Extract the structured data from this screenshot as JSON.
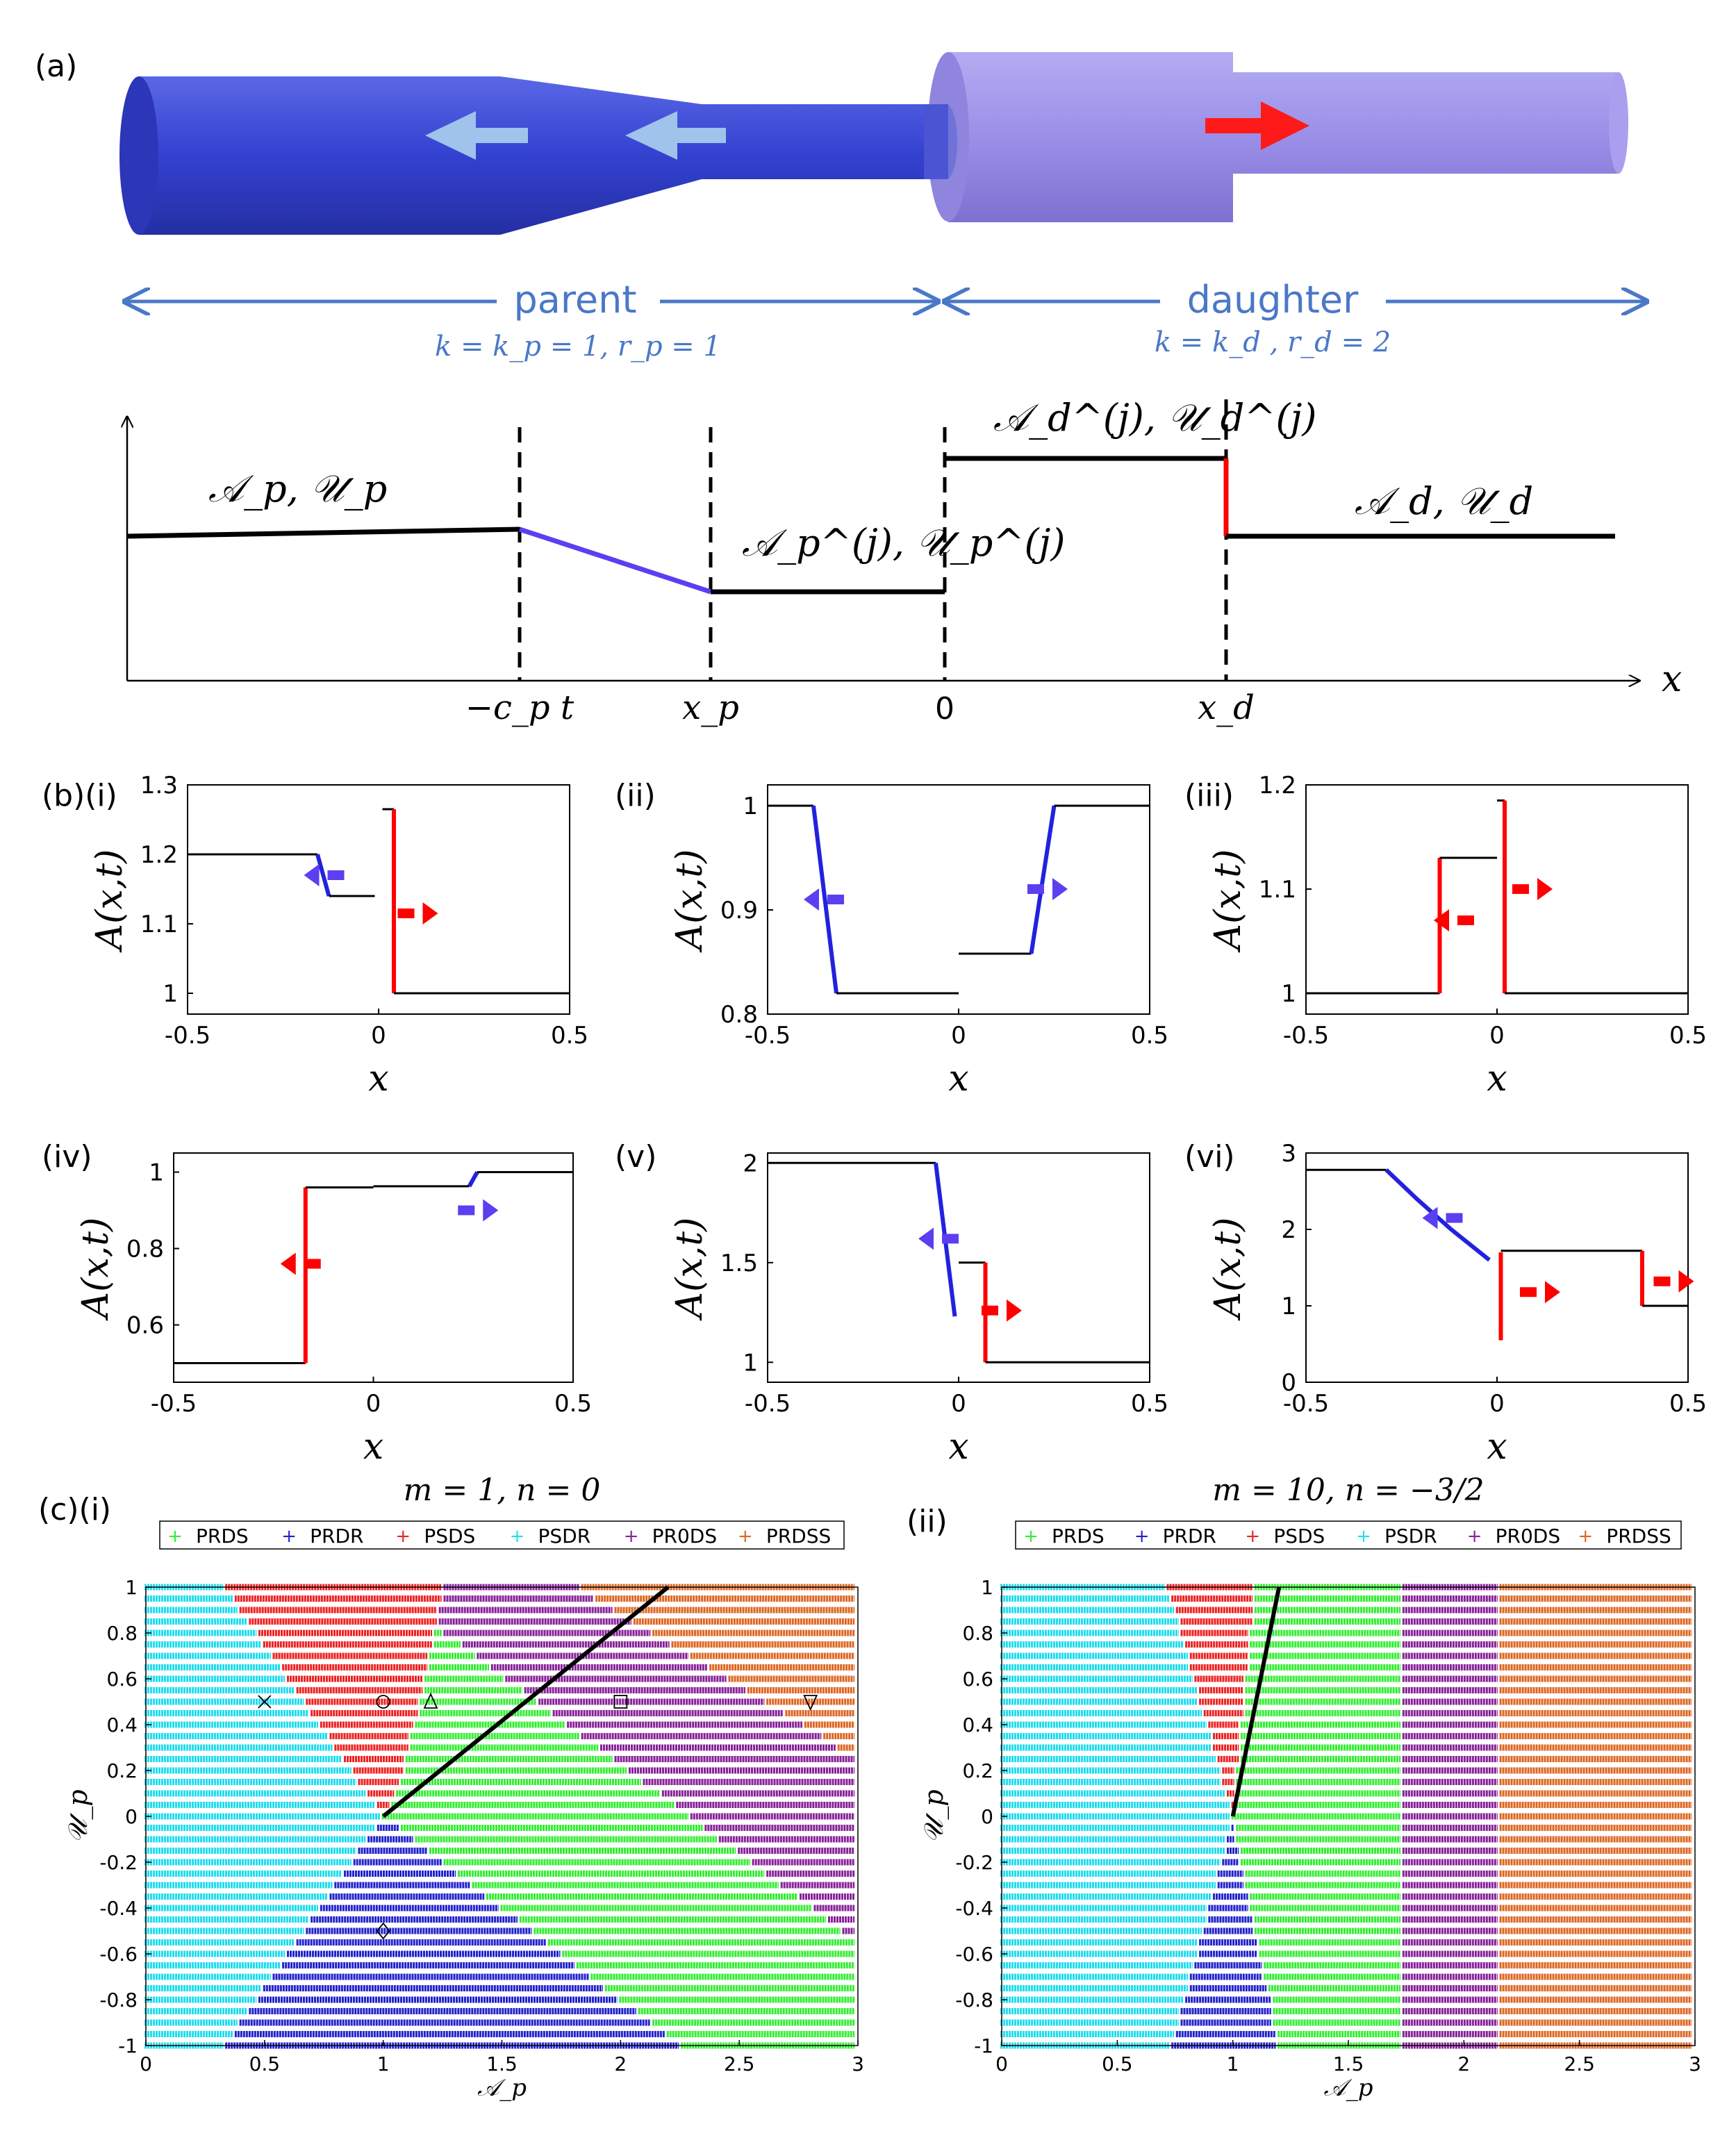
{
  "panel_a": {
    "label": "(a)",
    "parent_label": "parent",
    "parent_params": "k = k_p = 1, r_p = 1",
    "daughter_label": "daughter",
    "daughter_params": "k = k_d , r_d = 2",
    "region_labels": {
      "parent": "𝒜_p, 𝒰_p",
      "parent_j": "𝒜_p^(j), 𝒰_p^(j)",
      "daughter_j": "𝒜_d^(j), 𝒰_d^(j)",
      "daughter": "𝒜_d, 𝒰_d"
    },
    "x_markers": [
      "−c_p t",
      "x_p",
      "0",
      "x_d"
    ],
    "x_axis_label": "x",
    "colors": {
      "parent_tube": "#3f4fd6",
      "daughter_tube": "#9a8fe8",
      "arrow_light": "#9fc3ea",
      "arrow_red": "#ff1a1a",
      "rarefaction": "#5b3ff0",
      "shock": "#ff0000"
    }
  },
  "panel_b_labels": [
    "(b)(i)",
    "(ii)",
    "(iii)",
    "(iv)",
    "(v)",
    "(vi)"
  ],
  "panel_c_labels": [
    "(c)(i)",
    "(ii)"
  ],
  "chart_data": [
    {
      "id": "b-i",
      "type": "line",
      "xlabel": "x",
      "ylabel": "A(x,t)",
      "xlim": [
        -0.5,
        0.5
      ],
      "ylim": [
        0.97,
        1.3
      ],
      "xticks": [
        "-0.5",
        "0",
        "0.5"
      ],
      "yticks": [
        "1",
        "1.1",
        "1.2",
        "1.3"
      ],
      "series": [
        {
          "name": "parent-left",
          "color": "#000000",
          "points": [
            [
              -0.5,
              1.2
            ],
            [
              -0.16,
              1.2
            ]
          ]
        },
        {
          "name": "parent-rarefaction",
          "color": "#2222dd",
          "points": [
            [
              -0.16,
              1.2
            ],
            [
              -0.13,
              1.14
            ]
          ]
        },
        {
          "name": "parent-mid",
          "color": "#000000",
          "points": [
            [
              -0.13,
              1.14
            ],
            [
              -0.01,
              1.14
            ]
          ]
        },
        {
          "name": "daughter-top",
          "color": "#000000",
          "points": [
            [
              0.01,
              1.265
            ],
            [
              0.04,
              1.265
            ]
          ]
        },
        {
          "name": "daughter-shock",
          "color": "#ff0000",
          "points": [
            [
              0.04,
              1.265
            ],
            [
              0.04,
              1.0
            ]
          ]
        },
        {
          "name": "daughter-right",
          "color": "#000000",
          "points": [
            [
              0.04,
              1.0
            ],
            [
              0.5,
              1.0
            ]
          ]
        }
      ],
      "arrows": [
        {
          "x": -0.13,
          "y": 1.17,
          "dir": "left",
          "color": "#5b3ff0"
        },
        {
          "x": 0.09,
          "y": 1.115,
          "dir": "right",
          "color": "#ff0000"
        }
      ]
    },
    {
      "id": "b-ii",
      "type": "line",
      "xlabel": "x",
      "ylabel": "A(x,t)",
      "xlim": [
        -0.5,
        0.5
      ],
      "ylim": [
        0.8,
        1.02
      ],
      "xticks": [
        "-0.5",
        "0",
        "0.5"
      ],
      "yticks": [
        "0.8",
        "0.9",
        "1"
      ],
      "series": [
        {
          "name": "parent-left",
          "color": "#000000",
          "points": [
            [
              -0.5,
              1.0
            ],
            [
              -0.38,
              1.0
            ]
          ]
        },
        {
          "name": "parent-rarefaction",
          "color": "#2222dd",
          "points": [
            [
              -0.38,
              1.0
            ],
            [
              -0.32,
              0.82
            ]
          ]
        },
        {
          "name": "parent-mid",
          "color": "#000000",
          "points": [
            [
              -0.32,
              0.82
            ],
            [
              0.0,
              0.82
            ]
          ]
        },
        {
          "name": "daughter-mid",
          "color": "#000000",
          "points": [
            [
              0.0,
              0.858
            ],
            [
              0.19,
              0.858
            ]
          ]
        },
        {
          "name": "daughter-rarefaction",
          "color": "#2222dd",
          "points": [
            [
              0.19,
              0.858
            ],
            [
              0.25,
              1.0
            ]
          ]
        },
        {
          "name": "daughter-right",
          "color": "#000000",
          "points": [
            [
              0.25,
              1.0
            ],
            [
              0.5,
              1.0
            ]
          ]
        }
      ],
      "arrows": [
        {
          "x": -0.34,
          "y": 0.91,
          "dir": "left",
          "color": "#5b3ff0"
        },
        {
          "x": 0.22,
          "y": 0.92,
          "dir": "right",
          "color": "#5b3ff0"
        }
      ]
    },
    {
      "id": "b-iii",
      "type": "line",
      "xlabel": "x",
      "ylabel": "A(x,t)",
      "xlim": [
        -0.5,
        0.5
      ],
      "ylim": [
        0.98,
        1.2
      ],
      "xticks": [
        "-0.5",
        "0",
        "0.5"
      ],
      "yticks": [
        "1",
        "1.1",
        "1.2"
      ],
      "series": [
        {
          "name": "parent-left",
          "color": "#000000",
          "points": [
            [
              -0.5,
              1.0
            ],
            [
              -0.15,
              1.0
            ]
          ]
        },
        {
          "name": "parent-shock",
          "color": "#ff0000",
          "points": [
            [
              -0.15,
              1.0
            ],
            [
              -0.15,
              1.13
            ]
          ]
        },
        {
          "name": "parent-mid",
          "color": "#000000",
          "points": [
            [
              -0.15,
              1.13
            ],
            [
              0.0,
              1.13
            ]
          ]
        },
        {
          "name": "daughter-top",
          "color": "#000000",
          "points": [
            [
              0.0,
              1.185
            ],
            [
              0.02,
              1.185
            ]
          ]
        },
        {
          "name": "daughter-shock",
          "color": "#ff0000",
          "points": [
            [
              0.02,
              1.185
            ],
            [
              0.02,
              1.0
            ]
          ]
        },
        {
          "name": "daughter-right",
          "color": "#000000",
          "points": [
            [
              0.02,
              1.0
            ],
            [
              0.5,
              1.0
            ]
          ]
        }
      ],
      "arrows": [
        {
          "x": -0.1,
          "y": 1.07,
          "dir": "left",
          "color": "#ff0000"
        },
        {
          "x": 0.08,
          "y": 1.1,
          "dir": "right",
          "color": "#ff0000"
        }
      ]
    },
    {
      "id": "b-iv",
      "type": "line",
      "xlabel": "x",
      "ylabel": "A(x,t)",
      "xlim": [
        -0.5,
        0.5
      ],
      "ylim": [
        0.45,
        1.05
      ],
      "xticks": [
        "-0.5",
        "0",
        "0.5"
      ],
      "yticks": [
        "0.6",
        "0.8",
        "1"
      ],
      "series": [
        {
          "name": "parent-left",
          "color": "#000000",
          "points": [
            [
              -0.5,
              0.5
            ],
            [
              -0.17,
              0.5
            ]
          ]
        },
        {
          "name": "parent-shock",
          "color": "#ff0000",
          "points": [
            [
              -0.17,
              0.5
            ],
            [
              -0.17,
              0.96
            ]
          ]
        },
        {
          "name": "parent-mid",
          "color": "#000000",
          "points": [
            [
              -0.17,
              0.96
            ],
            [
              0.0,
              0.96
            ]
          ]
        },
        {
          "name": "daughter-mid",
          "color": "#000000",
          "points": [
            [
              0.0,
              0.963
            ],
            [
              0.24,
              0.963
            ]
          ]
        },
        {
          "name": "daughter-rarefaction",
          "color": "#2222dd",
          "points": [
            [
              0.24,
              0.963
            ],
            [
              0.26,
              1.0
            ]
          ]
        },
        {
          "name": "daughter-right",
          "color": "#000000",
          "points": [
            [
              0.26,
              1.0
            ],
            [
              0.5,
              1.0
            ]
          ]
        }
      ],
      "arrows": [
        {
          "x": -0.17,
          "y": 0.76,
          "dir": "left",
          "color": "#ff0000"
        },
        {
          "x": 0.25,
          "y": 0.9,
          "dir": "right",
          "color": "#5b3ff0"
        }
      ]
    },
    {
      "id": "b-v",
      "type": "line",
      "xlabel": "x",
      "ylabel": "A(x,t)",
      "xlim": [
        -0.5,
        0.5
      ],
      "ylim": [
        0.9,
        2.05
      ],
      "xticks": [
        "-0.5",
        "0",
        "0.5"
      ],
      "yticks": [
        "1",
        "1.5",
        "2"
      ],
      "series": [
        {
          "name": "parent-left",
          "color": "#000000",
          "points": [
            [
              -0.5,
              2.0
            ],
            [
              -0.06,
              2.0
            ]
          ]
        },
        {
          "name": "parent-rarefaction",
          "color": "#2222dd",
          "points": [
            [
              -0.06,
              2.0
            ],
            [
              -0.01,
              1.23
            ]
          ]
        },
        {
          "name": "daughter-top",
          "color": "#000000",
          "points": [
            [
              0.0,
              1.5
            ],
            [
              0.07,
              1.5
            ]
          ]
        },
        {
          "name": "daughter-shock",
          "color": "#ff0000",
          "points": [
            [
              0.07,
              1.5
            ],
            [
              0.07,
              1.0
            ]
          ]
        },
        {
          "name": "daughter-right",
          "color": "#000000",
          "points": [
            [
              0.07,
              1.0
            ],
            [
              0.5,
              1.0
            ]
          ]
        }
      ],
      "arrows": [
        {
          "x": -0.04,
          "y": 1.62,
          "dir": "left",
          "color": "#5b3ff0"
        },
        {
          "x": 0.1,
          "y": 1.26,
          "dir": "right",
          "color": "#ff0000"
        }
      ]
    },
    {
      "id": "b-vi",
      "type": "line",
      "xlabel": "x",
      "ylabel": "A(x,t)",
      "xlim": [
        -0.5,
        0.5
      ],
      "ylim": [
        0,
        3
      ],
      "xticks": [
        "-0.5",
        "0",
        "0.5"
      ],
      "yticks": [
        "0",
        "1",
        "2",
        "3"
      ],
      "series": [
        {
          "name": "parent-left",
          "color": "#000000",
          "points": [
            [
              -0.5,
              2.78
            ],
            [
              -0.29,
              2.78
            ]
          ]
        },
        {
          "name": "parent-rarefaction",
          "color": "#2222dd",
          "points": [
            [
              -0.29,
              2.78
            ],
            [
              -0.21,
              2.4
            ],
            [
              -0.12,
              2.0
            ],
            [
              -0.02,
              1.6
            ]
          ]
        },
        {
          "name": "parent-shock-stub",
          "color": "#ff0000",
          "points": [
            [
              0.01,
              0.55
            ],
            [
              0.01,
              1.7
            ]
          ]
        },
        {
          "name": "mid",
          "color": "#000000",
          "points": [
            [
              0.01,
              1.72
            ],
            [
              0.38,
              1.72
            ]
          ]
        },
        {
          "name": "daughter-shock",
          "color": "#ff0000",
          "points": [
            [
              0.38,
              1.72
            ],
            [
              0.38,
              1.0
            ]
          ]
        },
        {
          "name": "daughter-right",
          "color": "#000000",
          "points": [
            [
              0.38,
              1.0
            ],
            [
              0.5,
              1.0
            ]
          ]
        }
      ],
      "arrows": [
        {
          "x": -0.13,
          "y": 2.15,
          "dir": "left",
          "color": "#5b3ff0"
        },
        {
          "x": 0.1,
          "y": 1.18,
          "dir": "right",
          "color": "#ff0000"
        },
        {
          "x": 0.45,
          "y": 1.32,
          "dir": "right",
          "color": "#ff0000"
        }
      ]
    },
    {
      "id": "c-i",
      "type": "scatter",
      "title": "m = 1, n = 0",
      "xlabel": "𝒜_p",
      "ylabel": "𝒰_p",
      "xlim": [
        0,
        3
      ],
      "ylim": [
        -1,
        1
      ],
      "xticks": [
        "0",
        "0.5",
        "1",
        "1.5",
        "2",
        "2.5",
        "3"
      ],
      "yticks": [
        "-1",
        "-0.8",
        "-0.6",
        "-0.4",
        "-0.2",
        "0",
        "0.2",
        "0.4",
        "0.6",
        "0.8",
        "1"
      ],
      "legend": [
        {
          "name": "PRDS",
          "color": "#33ee33"
        },
        {
          "name": "PRDR",
          "color": "#2222cc"
        },
        {
          "name": "PSDS",
          "color": "#ee2222"
        },
        {
          "name": "PSDR",
          "color": "#22ddee"
        },
        {
          "name": "PR0DS",
          "color": "#882299"
        },
        {
          "name": "PRDSS",
          "color": "#dd6622"
        }
      ],
      "boundaries": {
        "cyan_upper": [
          [
            0.33,
            1
          ],
          [
            1.0,
            0
          ]
        ],
        "cyan_lower": [
          [
            1.0,
            0
          ],
          [
            0.33,
            -1
          ]
        ],
        "red_right": [
          [
            1.1,
            1
          ],
          [
            1.05,
            0.3
          ],
          [
            1.0,
            0
          ]
        ],
        "blue_right": [
          [
            1.0,
            0
          ],
          [
            2.25,
            -1
          ]
        ],
        "purple_lower": [
          [
            1.0,
            1.0
          ],
          [
            3.0,
            -0.55
          ]
        ],
        "orange_lower": [
          [
            1.82,
            1.0
          ],
          [
            3.0,
            0.25
          ]
        ]
      },
      "curve": [
        [
          1.0,
          0.0
        ],
        [
          2.2,
          1.0
        ]
      ],
      "markers": [
        {
          "shape": "x",
          "x": 0.5,
          "y": 0.5
        },
        {
          "shape": "circle",
          "x": 1.0,
          "y": 0.5
        },
        {
          "shape": "triangle",
          "x": 1.2,
          "y": 0.5
        },
        {
          "shape": "square",
          "x": 2.0,
          "y": 0.5
        },
        {
          "shape": "inv-triangle",
          "x": 2.8,
          "y": 0.5
        },
        {
          "shape": "diamond",
          "x": 1.0,
          "y": -0.5
        }
      ]
    },
    {
      "id": "c-ii",
      "type": "scatter",
      "title": "m = 10, n = −3/2",
      "xlabel": "𝒜_p",
      "ylabel": "𝒰_p",
      "xlim": [
        0,
        3
      ],
      "ylim": [
        -1,
        1
      ],
      "xticks": [
        "0",
        "0.5",
        "1",
        "1.5",
        "2",
        "2.5",
        "3"
      ],
      "yticks": [
        "-1",
        "-0.8",
        "-0.6",
        "-0.4",
        "-0.2",
        "0",
        "0.2",
        "0.4",
        "0.6",
        "0.8",
        "1"
      ],
      "legend": [
        {
          "name": "PRDS",
          "color": "#33ee33"
        },
        {
          "name": "PRDR",
          "color": "#2222cc"
        },
        {
          "name": "PSDS",
          "color": "#ee2222"
        },
        {
          "name": "PSDR",
          "color": "#22ddee"
        },
        {
          "name": "PR0DS",
          "color": "#882299"
        },
        {
          "name": "PRDSS",
          "color": "#dd6622"
        }
      ],
      "curve": [
        [
          1.0,
          0.0
        ],
        [
          1.08,
          0.4
        ],
        [
          1.2,
          1.0
        ]
      ]
    }
  ]
}
